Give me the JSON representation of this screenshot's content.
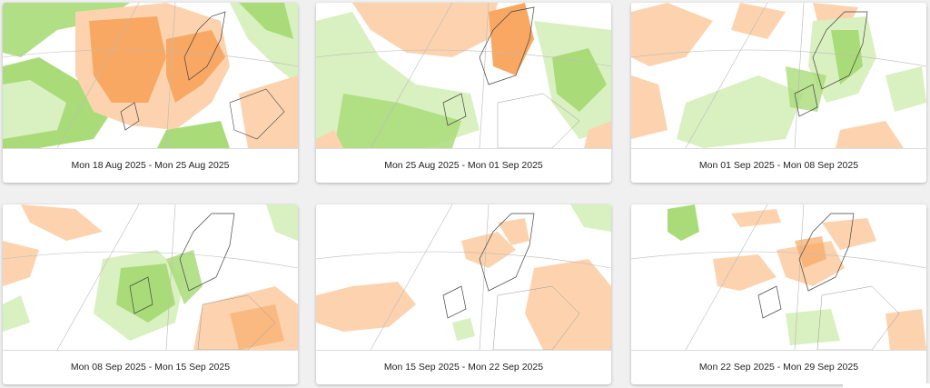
{
  "panels": [
    {
      "id": "p1",
      "caption": "Mon 18 Aug 2025 - Mon 25 Aug 2025"
    },
    {
      "id": "p2",
      "caption": "Mon 25 Aug 2025 - Mon 01 Sep 2025"
    },
    {
      "id": "p3",
      "caption": "Mon 01 Sep 2025 - Mon 08 Sep 2025"
    },
    {
      "id": "p4",
      "caption": "Mon 08 Sep 2025 - Mon 15 Sep 2025"
    },
    {
      "id": "p5",
      "caption": "Mon 15 Sep 2025 - Mon 22 Sep 2025"
    },
    {
      "id": "p6",
      "caption": "Mon 22 Sep 2025 - Mon 29 Sep 2025"
    }
  ],
  "colors": {
    "positive_light": "#fcd3ae",
    "positive_strong": "#f8a863",
    "negative_light": "#d9f0c0",
    "negative_strong": "#a9dc78",
    "coastline": "#444444",
    "gridline": "#bbbbbb",
    "border": "#999999"
  }
}
